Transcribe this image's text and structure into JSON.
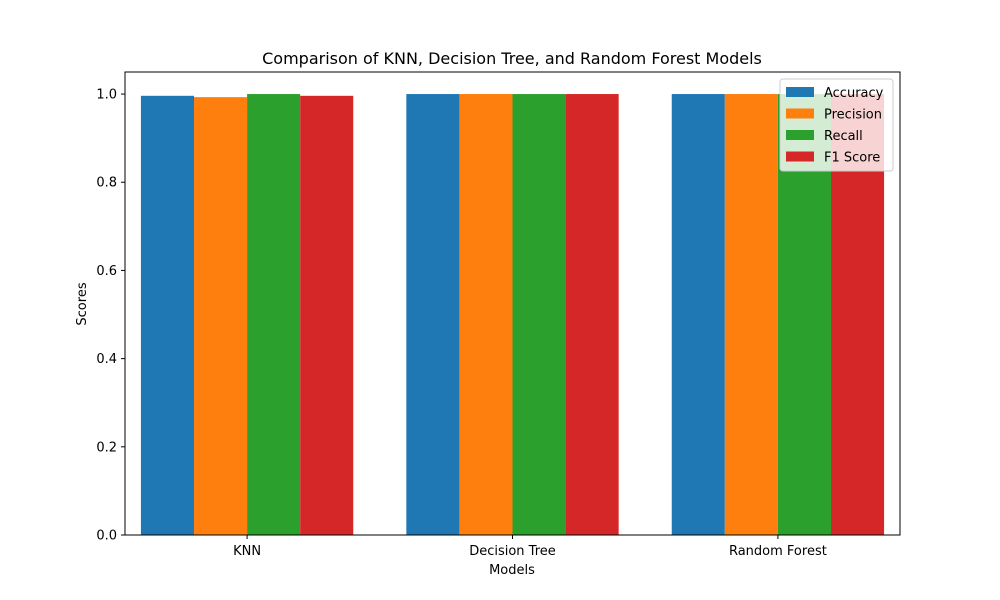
{
  "chart_data": {
    "type": "bar",
    "title": "Comparison of KNN, Decision Tree, and Random Forest Models",
    "xlabel": "Models",
    "ylabel": "Scores",
    "categories": [
      "KNN",
      "Decision Tree",
      "Random Forest"
    ],
    "series": [
      {
        "name": "Accuracy",
        "color": "#1f77b4",
        "values": [
          0.996,
          1.0,
          1.0
        ]
      },
      {
        "name": "Precision",
        "color": "#ff7f0e",
        "values": [
          0.993,
          1.0,
          1.0
        ]
      },
      {
        "name": "Recall",
        "color": "#2ca02c",
        "values": [
          1.0,
          1.0,
          1.0
        ]
      },
      {
        "name": "F1 Score",
        "color": "#d62728",
        "values": [
          0.996,
          1.0,
          1.0
        ]
      }
    ],
    "ylim": [
      0,
      1.05
    ],
    "yticks": [
      "0.0",
      "0.2",
      "0.4",
      "0.6",
      "0.8",
      "1.0"
    ],
    "grid": false,
    "legend_position": "top-right"
  }
}
